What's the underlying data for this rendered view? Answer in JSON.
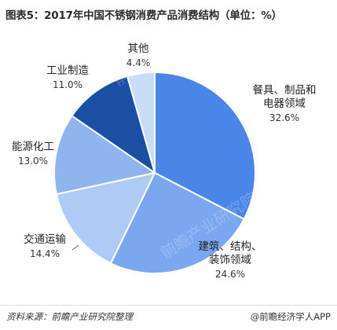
{
  "title": "图表5：2017年中国不锈钢消费产品消费结构（单位：%）",
  "source": "资料来源：前瞻产业研究院整理",
  "credit": "@前瞻经济学人APP",
  "watermark": "前瞻产业研究院",
  "chart_data": {
    "type": "pie",
    "title": "图表5：2017年中国不锈钢消费产品消费结构（单位：%）",
    "unit": "%",
    "slices": [
      {
        "label": [
          "餐具、制品和",
          "电器领域"
        ],
        "value": 32.6,
        "display": "32.6%",
        "color": "#4a86e8"
      },
      {
        "label": [
          "建筑、结构、",
          "装饰领域"
        ],
        "value": 24.6,
        "display": "24.6%",
        "color": "#7aa7ef"
      },
      {
        "label": [
          "交通运输"
        ],
        "value": 14.4,
        "display": "14.4%",
        "color": "#aecbf6"
      },
      {
        "label": [
          "能源化工"
        ],
        "value": 13.0,
        "display": "13.0%",
        "color": "#8fb4ee"
      },
      {
        "label": [
          "工业制造"
        ],
        "value": 11.0,
        "display": "11.0%",
        "color": "#1b4fa3"
      },
      {
        "label": [
          "其他"
        ],
        "value": 4.4,
        "display": "4.4%",
        "color": "#c9dcf7"
      }
    ]
  }
}
